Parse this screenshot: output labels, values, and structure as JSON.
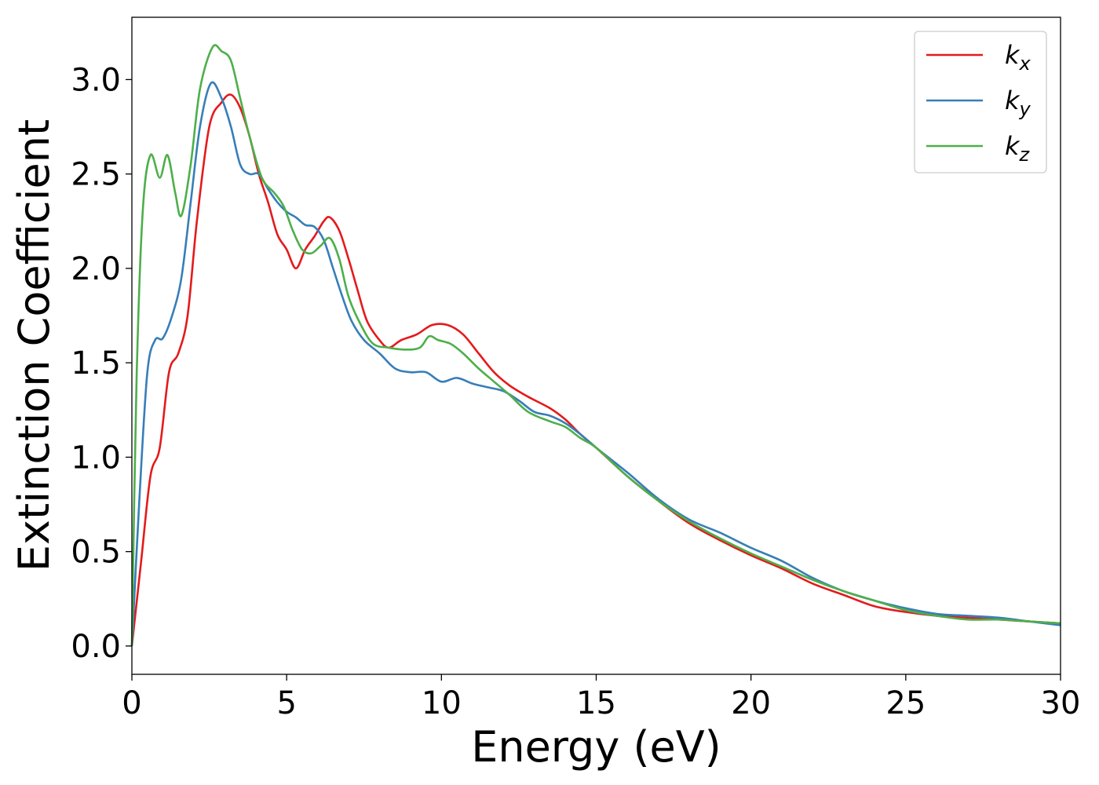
{
  "chart_data": {
    "type": "line",
    "title": "",
    "xlabel": "Energy (eV)",
    "ylabel": "Extinction Coefficient",
    "xlim": [
      0,
      30
    ],
    "ylim": [
      -0.15,
      3.33
    ],
    "xticks": [
      0,
      5,
      10,
      15,
      20,
      25,
      30
    ],
    "xtick_labels": [
      "0",
      "5",
      "10",
      "15",
      "20",
      "25",
      "30"
    ],
    "yticks": [
      0.0,
      0.5,
      1.0,
      1.5,
      2.0,
      2.5,
      3.0
    ],
    "ytick_labels": [
      "0.0",
      "0.5",
      "1.0",
      "1.5",
      "2.0",
      "2.5",
      "3.0"
    ],
    "grid": false,
    "legend_position": "top-right",
    "series": [
      {
        "name": "k_x",
        "label_base": "k",
        "label_sub": "x",
        "color": "#e41a1c",
        "points": [
          [
            0,
            0.0
          ],
          [
            0.3,
            0.45
          ],
          [
            0.6,
            0.9
          ],
          [
            0.9,
            1.05
          ],
          [
            1.2,
            1.45
          ],
          [
            1.5,
            1.55
          ],
          [
            1.8,
            1.75
          ],
          [
            2.1,
            2.25
          ],
          [
            2.5,
            2.75
          ],
          [
            2.9,
            2.88
          ],
          [
            3.2,
            2.92
          ],
          [
            3.5,
            2.85
          ],
          [
            3.8,
            2.7
          ],
          [
            4.1,
            2.5
          ],
          [
            4.4,
            2.35
          ],
          [
            4.7,
            2.18
          ],
          [
            5.0,
            2.1
          ],
          [
            5.3,
            2.0
          ],
          [
            5.6,
            2.1
          ],
          [
            5.9,
            2.17
          ],
          [
            6.2,
            2.25
          ],
          [
            6.4,
            2.27
          ],
          [
            6.7,
            2.2
          ],
          [
            7.0,
            2.05
          ],
          [
            7.3,
            1.88
          ],
          [
            7.6,
            1.72
          ],
          [
            8.0,
            1.62
          ],
          [
            8.3,
            1.58
          ],
          [
            8.7,
            1.62
          ],
          [
            9.2,
            1.65
          ],
          [
            9.7,
            1.7
          ],
          [
            10.2,
            1.7
          ],
          [
            10.7,
            1.65
          ],
          [
            11.2,
            1.55
          ],
          [
            11.7,
            1.45
          ],
          [
            12.2,
            1.38
          ],
          [
            12.8,
            1.32
          ],
          [
            13.5,
            1.26
          ],
          [
            14.0,
            1.2
          ],
          [
            14.5,
            1.12
          ],
          [
            15.0,
            1.05
          ],
          [
            16,
            0.9
          ],
          [
            17,
            0.77
          ],
          [
            18,
            0.65
          ],
          [
            19,
            0.56
          ],
          [
            20,
            0.48
          ],
          [
            21,
            0.41
          ],
          [
            22,
            0.33
          ],
          [
            23,
            0.27
          ],
          [
            24,
            0.21
          ],
          [
            25,
            0.18
          ],
          [
            26,
            0.16
          ],
          [
            27,
            0.15
          ],
          [
            28,
            0.14
          ],
          [
            29,
            0.13
          ],
          [
            30,
            0.12
          ]
        ]
      },
      {
        "name": "k_y",
        "label_base": "k",
        "label_sub": "y",
        "color": "#377eb8",
        "points": [
          [
            0,
            0.0
          ],
          [
            0.25,
            0.8
          ],
          [
            0.5,
            1.45
          ],
          [
            0.75,
            1.62
          ],
          [
            1.0,
            1.63
          ],
          [
            1.3,
            1.75
          ],
          [
            1.6,
            1.95
          ],
          [
            1.9,
            2.35
          ],
          [
            2.2,
            2.75
          ],
          [
            2.55,
            2.98
          ],
          [
            2.9,
            2.9
          ],
          [
            3.2,
            2.75
          ],
          [
            3.5,
            2.55
          ],
          [
            3.8,
            2.5
          ],
          [
            4.1,
            2.5
          ],
          [
            4.4,
            2.42
          ],
          [
            4.7,
            2.35
          ],
          [
            5.0,
            2.3
          ],
          [
            5.3,
            2.27
          ],
          [
            5.6,
            2.23
          ],
          [
            5.9,
            2.22
          ],
          [
            6.2,
            2.15
          ],
          [
            6.5,
            2.0
          ],
          [
            6.8,
            1.85
          ],
          [
            7.1,
            1.72
          ],
          [
            7.5,
            1.62
          ],
          [
            8.0,
            1.55
          ],
          [
            8.5,
            1.47
          ],
          [
            9.0,
            1.45
          ],
          [
            9.5,
            1.45
          ],
          [
            10.0,
            1.4
          ],
          [
            10.5,
            1.42
          ],
          [
            11.0,
            1.39
          ],
          [
            11.5,
            1.37
          ],
          [
            12.0,
            1.35
          ],
          [
            12.5,
            1.3
          ],
          [
            13.0,
            1.24
          ],
          [
            13.5,
            1.22
          ],
          [
            14.0,
            1.18
          ],
          [
            14.5,
            1.12
          ],
          [
            15.0,
            1.05
          ],
          [
            16,
            0.92
          ],
          [
            17,
            0.78
          ],
          [
            18,
            0.67
          ],
          [
            19,
            0.6
          ],
          [
            20,
            0.52
          ],
          [
            21,
            0.45
          ],
          [
            22,
            0.36
          ],
          [
            23,
            0.29
          ],
          [
            24,
            0.24
          ],
          [
            25,
            0.2
          ],
          [
            26,
            0.17
          ],
          [
            27,
            0.16
          ],
          [
            28,
            0.15
          ],
          [
            29,
            0.13
          ],
          [
            30,
            0.11
          ]
        ]
      },
      {
        "name": "k_z",
        "label_base": "k",
        "label_sub": "z",
        "color": "#4daf4a",
        "points": [
          [
            0,
            0.0
          ],
          [
            0.15,
            1.4
          ],
          [
            0.35,
            2.3
          ],
          [
            0.6,
            2.6
          ],
          [
            0.9,
            2.48
          ],
          [
            1.15,
            2.6
          ],
          [
            1.4,
            2.4
          ],
          [
            1.6,
            2.28
          ],
          [
            1.9,
            2.55
          ],
          [
            2.2,
            2.95
          ],
          [
            2.6,
            3.17
          ],
          [
            2.9,
            3.15
          ],
          [
            3.2,
            3.1
          ],
          [
            3.5,
            2.9
          ],
          [
            3.8,
            2.7
          ],
          [
            4.2,
            2.48
          ],
          [
            4.6,
            2.4
          ],
          [
            4.9,
            2.33
          ],
          [
            5.2,
            2.2
          ],
          [
            5.5,
            2.1
          ],
          [
            5.8,
            2.08
          ],
          [
            6.1,
            2.12
          ],
          [
            6.4,
            2.16
          ],
          [
            6.7,
            2.05
          ],
          [
            7.0,
            1.85
          ],
          [
            7.4,
            1.7
          ],
          [
            7.8,
            1.6
          ],
          [
            8.3,
            1.58
          ],
          [
            8.8,
            1.57
          ],
          [
            9.3,
            1.58
          ],
          [
            9.6,
            1.64
          ],
          [
            9.9,
            1.62
          ],
          [
            10.3,
            1.6
          ],
          [
            10.7,
            1.55
          ],
          [
            11.2,
            1.47
          ],
          [
            11.7,
            1.4
          ],
          [
            12.2,
            1.33
          ],
          [
            12.8,
            1.24
          ],
          [
            13.5,
            1.19
          ],
          [
            14.0,
            1.16
          ],
          [
            14.5,
            1.1
          ],
          [
            15.0,
            1.05
          ],
          [
            16,
            0.9
          ],
          [
            17,
            0.77
          ],
          [
            18,
            0.66
          ],
          [
            19,
            0.57
          ],
          [
            20,
            0.49
          ],
          [
            21,
            0.42
          ],
          [
            22,
            0.35
          ],
          [
            23,
            0.29
          ],
          [
            24,
            0.24
          ],
          [
            25,
            0.19
          ],
          [
            26,
            0.16
          ],
          [
            27,
            0.14
          ],
          [
            28,
            0.14
          ],
          [
            29,
            0.13
          ],
          [
            30,
            0.12
          ]
        ]
      }
    ]
  }
}
